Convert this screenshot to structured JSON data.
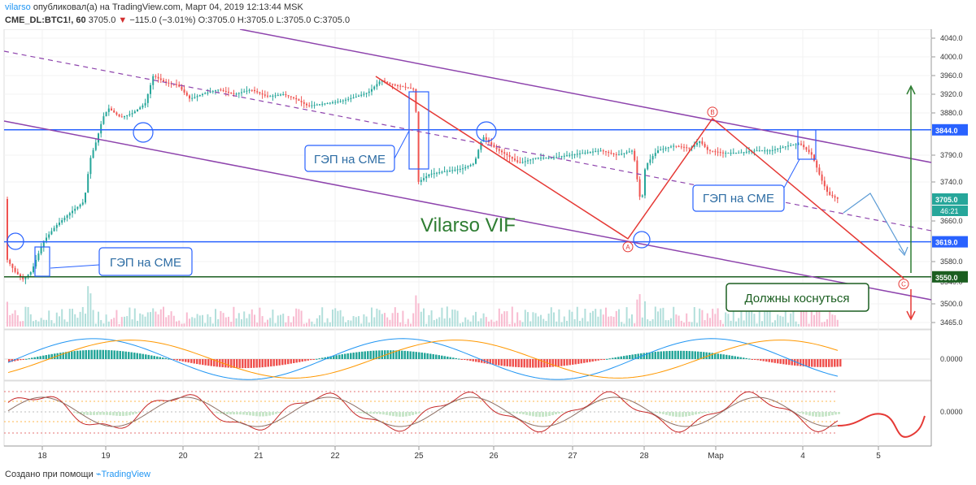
{
  "header": {
    "user": "vilarso",
    "published": "опубликовал(а) на TradingView.com, Март 04, 2019 12:13:44 MSK",
    "symbol": "CME_DL:BTC1!, 60",
    "last": "3705.0",
    "change": "−115.0 (−3.01%)",
    "ohlc": "O:3705.0 H:3705.0 L:3705.0 C:3705.0"
  },
  "footer": {
    "created": "Создано при помощи",
    "brand": "TradingView"
  },
  "chart_data": {
    "type": "candlestick",
    "symbol": "CME_DL:BTC1!",
    "interval": "60",
    "price_axis": {
      "ticks": [
        4040.0,
        4000.0,
        3960.0,
        3920.0,
        3880.0,
        3790.0,
        3740.0,
        3660.0,
        3580.0,
        3540.0,
        3500.0,
        3465.0
      ],
      "ylim": [
        3465,
        4050
      ]
    },
    "price_labels": [
      {
        "value": 3844.0,
        "text": "3844.0",
        "color": "#2962ff"
      },
      {
        "value": 3705.0,
        "text": "3705.0",
        "color": "#26a69a"
      },
      {
        "value": 3619.0,
        "text": "3619.0",
        "color": "#2962ff"
      },
      {
        "value": 3550.0,
        "text": "3550.0",
        "color": "#1b5e20"
      }
    ],
    "countdown": "46:21",
    "time_axis": [
      "18",
      "19",
      "20",
      "21",
      "22",
      "25",
      "26",
      "27",
      "28",
      "Мар",
      "4",
      "5"
    ],
    "horizontal_levels": [
      3844.0,
      3619.0,
      3550.0
    ],
    "trend_points": [
      {
        "label": "A",
        "value": 3625
      },
      {
        "label": "B",
        "value": 3868
      },
      {
        "label": "C",
        "value": 3547
      }
    ],
    "annotations": [
      "ГЭП на CME",
      "ГЭП на CME",
      "ГЭП на CME",
      "Должны коснуться"
    ],
    "watermark": "Vilarso VIF",
    "oscillator_ticks": [
      "0.0000",
      "0.0000"
    ],
    "colors": {
      "up": "#26a69a",
      "down": "#ef5350",
      "channel": "#8e44ad",
      "level": "#2962ff",
      "support": "#1b5e20",
      "trend": "#e53935"
    }
  }
}
